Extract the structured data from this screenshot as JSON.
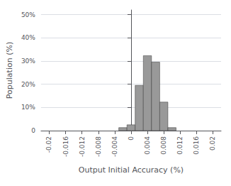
{
  "chart_data": {
    "type": "histogram",
    "xlabel": "Output Initial Accuracy (%)",
    "ylabel": "Population (%)",
    "bins": [
      -0.003,
      -0.001,
      0.001,
      0.003,
      0.005,
      0.007,
      0.009,
      0.011
    ],
    "values": [
      0.013,
      0.025,
      0.195,
      0.323,
      0.295,
      0.123,
      0.013
    ],
    "color": "#999999",
    "xlim": [
      -0.022,
      0.022
    ],
    "xticks": [
      -0.02,
      -0.016,
      -0.012,
      -0.008,
      -0.004,
      0,
      0.004,
      0.008,
      0.012,
      0.016,
      0.02
    ],
    "ylim": [
      0,
      0.52
    ],
    "yticks": [
      0,
      {
        "value": 0.1,
        "label": "10%"
      },
      {
        "value": 0.2,
        "label": "20%"
      },
      {
        "value": 0.3,
        "label": "30%"
      },
      {
        "value": 0.4,
        "label": "40%"
      },
      {
        "value": 0.5,
        "label": "50%"
      }
    ],
    "grid": true
  }
}
